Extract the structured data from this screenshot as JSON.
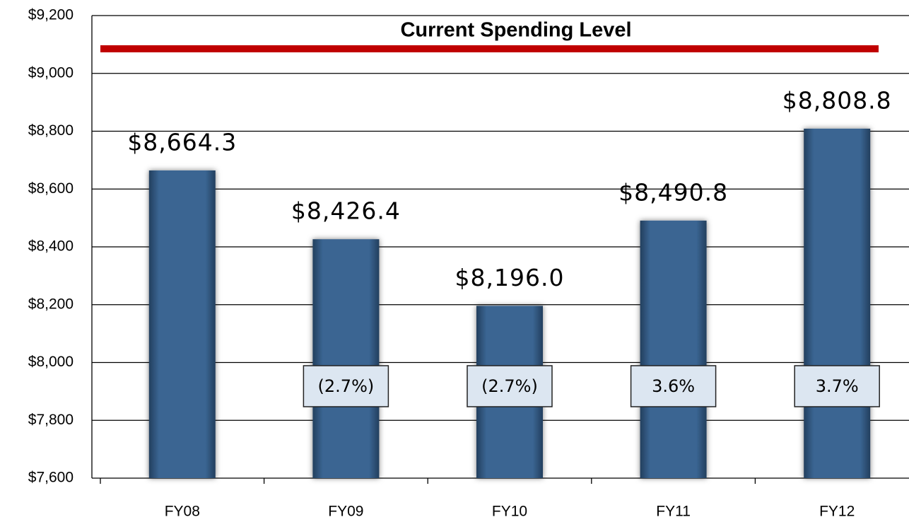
{
  "chart_data": {
    "type": "bar",
    "categories": [
      "FY08",
      "FY09",
      "FY10",
      "FY11",
      "FY12"
    ],
    "values": [
      8664.3,
      8426.4,
      8196.0,
      8490.8,
      8808.8
    ],
    "value_labels": [
      "$8,664.3",
      "$8,426.4",
      "$8,196.0",
      "$8,490.8",
      "$8,808.8"
    ],
    "change_labels": [
      null,
      "(2.7%)",
      "(2.7%)",
      "3.6%",
      "3.7%"
    ],
    "color": "#3a6592",
    "reference_line": {
      "value": 9085,
      "label": "Current Spending Level",
      "color": "#c00000"
    },
    "ylim": [
      7600,
      9200
    ],
    "yticks": [
      {
        "value": 7600,
        "label": "$7,600"
      },
      {
        "value": 7800,
        "label": "$7,800"
      },
      {
        "value": 8000,
        "label": "$8,000"
      },
      {
        "value": 8200,
        "label": "$8,200"
      },
      {
        "value": 8400,
        "label": "$8,400"
      },
      {
        "value": 8600,
        "label": "$8,600"
      },
      {
        "value": 8800,
        "label": "$8,800"
      },
      {
        "value": 9000,
        "label": "$9,000"
      },
      {
        "value": 9200,
        "label": "$9,200"
      }
    ],
    "grid": true
  }
}
